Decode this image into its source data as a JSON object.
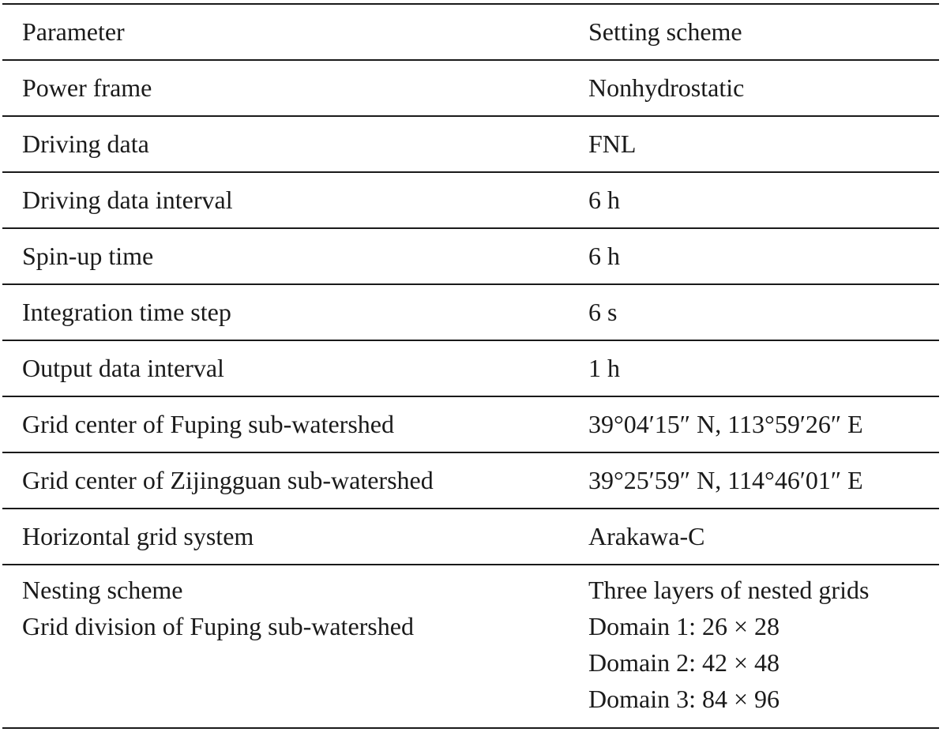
{
  "table": {
    "header": {
      "parameter": "Parameter",
      "setting": "Setting scheme"
    },
    "rows": [
      {
        "parameter": "Power frame",
        "setting": "Nonhydrostatic"
      },
      {
        "parameter": "Driving data",
        "setting": "FNL"
      },
      {
        "parameter": "Driving data interval",
        "setting": "6 h"
      },
      {
        "parameter": "Spin-up time",
        "setting": "6 h"
      },
      {
        "parameter": "Integration time step",
        "setting": "6 s"
      },
      {
        "parameter": "Output data interval",
        "setting": "1 h"
      },
      {
        "parameter": "Grid center of Fuping sub-watershed",
        "setting": "39°04′15″ N, 113°59′26″ E"
      },
      {
        "parameter": "Grid center of Zijingguan sub-watershed",
        "setting": "39°25′59″ N, 114°46′01″ E"
      },
      {
        "parameter": "Horizontal grid system",
        "setting": "Arakawa-C"
      }
    ],
    "last_row": {
      "parameter_lines": [
        "Nesting scheme",
        "Grid division of Fuping sub-watershed"
      ],
      "setting_lines": [
        "Three layers of nested grids",
        "Domain 1: 26 × 28",
        "Domain 2: 42 × 48",
        "Domain 3: 84 × 96"
      ]
    }
  }
}
